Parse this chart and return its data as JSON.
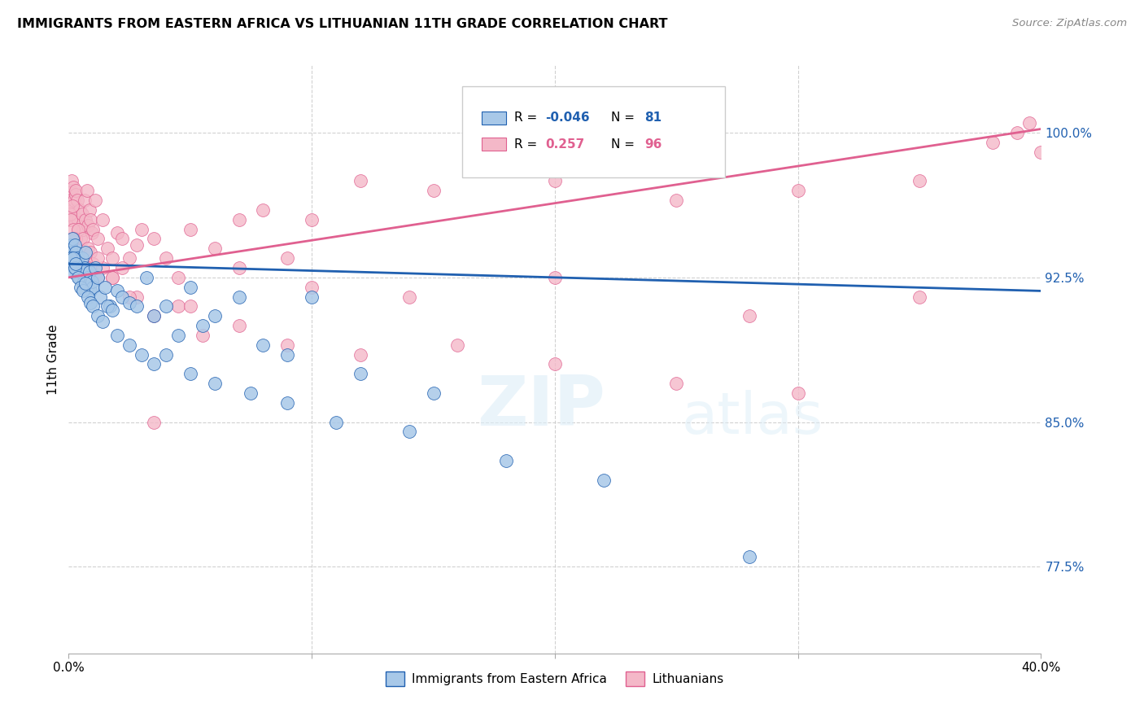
{
  "title": "IMMIGRANTS FROM EASTERN AFRICA VS LITHUANIAN 11TH GRADE CORRELATION CHART",
  "source": "Source: ZipAtlas.com",
  "ylabel": "11th Grade",
  "yticks": [
    77.5,
    85.0,
    92.5,
    100.0
  ],
  "ytick_labels": [
    "77.5%",
    "85.0%",
    "92.5%",
    "100.0%"
  ],
  "xlim": [
    0.0,
    40.0
  ],
  "ylim": [
    73.0,
    103.5
  ],
  "blue_R": -0.046,
  "blue_N": 81,
  "pink_R": 0.257,
  "pink_N": 96,
  "blue_color": "#a8c8e8",
  "pink_color": "#f4b8c8",
  "blue_line_color": "#2060b0",
  "pink_line_color": "#e06090",
  "watermark_zip": "ZIP",
  "watermark_atlas": "atlas",
  "blue_line_y0": 93.2,
  "blue_line_y1": 91.8,
  "pink_line_y0": 92.5,
  "pink_line_y1": 100.2,
  "blue_scatter_x": [
    0.05,
    0.08,
    0.1,
    0.12,
    0.15,
    0.18,
    0.2,
    0.22,
    0.25,
    0.28,
    0.3,
    0.32,
    0.35,
    0.38,
    0.4,
    0.42,
    0.45,
    0.5,
    0.55,
    0.6,
    0.65,
    0.7,
    0.75,
    0.8,
    0.85,
    0.9,
    0.95,
    1.0,
    1.1,
    1.2,
    1.3,
    1.5,
    1.7,
    2.0,
    2.2,
    2.5,
    2.8,
    3.2,
    3.5,
    4.0,
    4.5,
    5.0,
    5.5,
    6.0,
    7.0,
    8.0,
    9.0,
    10.0,
    12.0,
    15.0,
    0.05,
    0.1,
    0.15,
    0.2,
    0.25,
    0.3,
    0.4,
    0.5,
    0.6,
    0.7,
    0.8,
    0.9,
    1.0,
    1.2,
    1.4,
    1.6,
    1.8,
    2.0,
    2.5,
    3.0,
    3.5,
    4.0,
    5.0,
    6.0,
    7.5,
    9.0,
    11.0,
    14.0,
    18.0,
    22.0,
    28.0
  ],
  "blue_scatter_y": [
    93.5,
    94.2,
    94.0,
    93.8,
    94.5,
    93.2,
    93.6,
    93.0,
    94.2,
    93.5,
    93.8,
    92.8,
    93.5,
    93.0,
    93.2,
    92.5,
    93.0,
    92.8,
    93.5,
    92.2,
    93.0,
    93.8,
    92.0,
    92.5,
    92.8,
    91.8,
    92.3,
    92.0,
    93.0,
    92.5,
    91.5,
    92.0,
    91.0,
    91.8,
    91.5,
    91.2,
    91.0,
    92.5,
    90.5,
    91.0,
    89.5,
    92.0,
    90.0,
    90.5,
    91.5,
    89.0,
    88.5,
    91.5,
    87.5,
    86.5,
    93.2,
    93.5,
    92.8,
    93.5,
    93.0,
    93.2,
    92.5,
    92.0,
    91.8,
    92.2,
    91.5,
    91.2,
    91.0,
    90.5,
    90.2,
    91.0,
    90.8,
    89.5,
    89.0,
    88.5,
    88.0,
    88.5,
    87.5,
    87.0,
    86.5,
    86.0,
    85.0,
    84.5,
    83.0,
    82.0,
    78.0
  ],
  "pink_scatter_x": [
    0.05,
    0.08,
    0.1,
    0.12,
    0.15,
    0.18,
    0.2,
    0.22,
    0.25,
    0.28,
    0.3,
    0.35,
    0.38,
    0.4,
    0.45,
    0.5,
    0.55,
    0.6,
    0.65,
    0.7,
    0.75,
    0.8,
    0.85,
    0.9,
    0.95,
    1.0,
    1.1,
    1.2,
    1.4,
    1.6,
    1.8,
    2.0,
    2.2,
    2.5,
    2.8,
    3.0,
    3.5,
    4.0,
    4.5,
    5.0,
    6.0,
    7.0,
    8.0,
    9.0,
    10.0,
    12.0,
    15.0,
    20.0,
    25.0,
    30.0,
    35.0,
    38.0,
    39.0,
    0.05,
    0.1,
    0.15,
    0.2,
    0.3,
    0.4,
    0.5,
    0.6,
    0.7,
    0.8,
    0.9,
    1.0,
    1.2,
    1.4,
    1.8,
    2.2,
    2.8,
    3.5,
    4.5,
    5.5,
    7.0,
    9.0,
    12.0,
    16.0,
    20.0,
    25.0,
    30.0,
    0.2,
    0.4,
    0.8,
    1.2,
    1.8,
    2.5,
    3.5,
    5.0,
    7.0,
    10.0,
    14.0,
    20.0,
    28.0,
    35.0,
    39.5,
    40.0
  ],
  "pink_scatter_y": [
    95.5,
    97.0,
    96.5,
    97.5,
    96.0,
    97.2,
    95.8,
    96.5,
    95.5,
    96.8,
    97.0,
    96.5,
    95.5,
    95.0,
    96.0,
    94.5,
    95.8,
    95.0,
    96.5,
    95.5,
    97.0,
    95.2,
    96.0,
    95.5,
    94.8,
    95.0,
    96.5,
    94.5,
    95.5,
    94.0,
    93.5,
    94.8,
    94.5,
    93.5,
    94.2,
    95.0,
    94.5,
    93.5,
    92.5,
    95.0,
    94.0,
    95.5,
    96.0,
    93.5,
    95.5,
    97.5,
    97.0,
    97.5,
    96.5,
    97.0,
    97.5,
    99.5,
    100.0,
    95.8,
    95.5,
    96.2,
    95.0,
    94.5,
    95.0,
    93.5,
    94.5,
    93.5,
    94.0,
    93.8,
    93.2,
    92.5,
    93.0,
    92.5,
    93.0,
    91.5,
    90.5,
    91.0,
    89.5,
    90.0,
    89.0,
    88.5,
    89.0,
    88.0,
    87.0,
    86.5,
    94.5,
    93.5,
    93.0,
    93.5,
    92.5,
    91.5,
    85.0,
    91.0,
    93.0,
    92.0,
    91.5,
    92.5,
    90.5,
    91.5,
    100.5,
    99.0
  ]
}
